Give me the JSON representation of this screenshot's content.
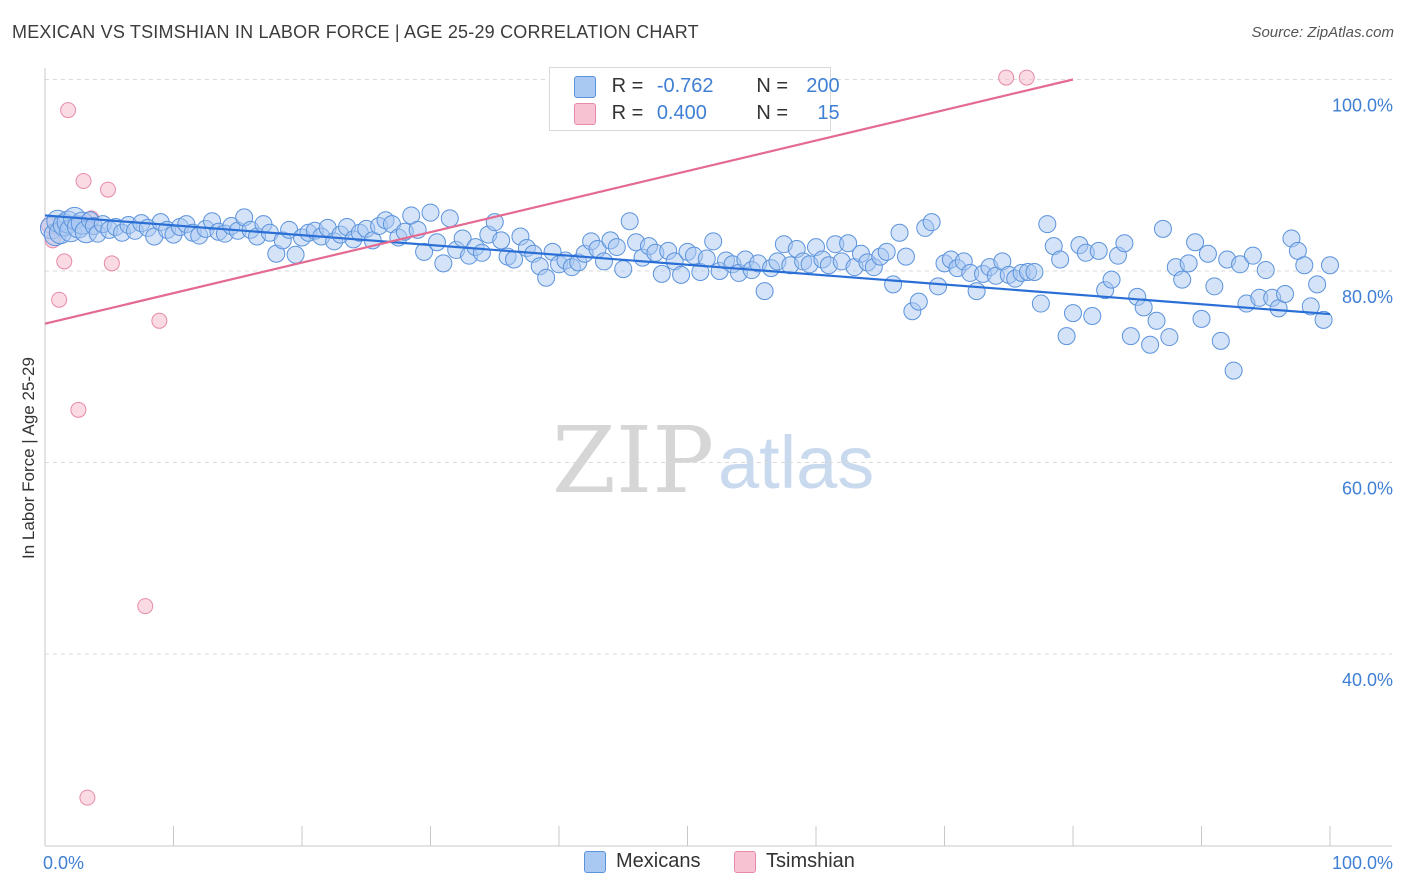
{
  "header": {
    "title": "MEXICAN VS TSIMSHIAN IN LABOR FORCE | AGE 25-29 CORRELATION CHART",
    "source": "Source: ZipAtlas.com"
  },
  "watermark": {
    "zip": "ZIP",
    "atlas": "atlas"
  },
  "legend": {
    "rows": [
      {
        "r_label": "R =",
        "r_value": "-0.762",
        "n_label": "N =",
        "n_value": "200"
      },
      {
        "r_label": "R =",
        "r_value": "0.400",
        "n_label": "N =",
        "n_value": "15"
      }
    ]
  },
  "bottom_legend": {
    "mexicans": "Mexicans",
    "tsimshian": "Tsimshian"
  },
  "colors": {
    "mexicans_fill": "#a9c8f2",
    "mexicans_stroke": "#5b93dc",
    "mexicans_line": "#2a6fd6",
    "tsimshian_fill": "#f7c3d2",
    "tsimshian_stroke": "#e78aa7",
    "tsimshian_line": "#e46a91",
    "axis_label": "#3f7fd4",
    "grid": "#d9d9d9"
  },
  "chart_data": {
    "type": "scatter",
    "title": "MEXICAN VS TSIMSHIAN IN LABOR FORCE | AGE 25-29 CORRELATION CHART",
    "xlabel": "",
    "ylabel": "In Labor Force | Age 25-29",
    "xlim": [
      0,
      100
    ],
    "ylim": [
      20,
      102
    ],
    "x_tick_labels": [
      "0.0%",
      "100.0%"
    ],
    "y_ticks": [
      40,
      60,
      80,
      100
    ],
    "y_tick_labels": [
      "40.0%",
      "60.0%",
      "80.0%",
      "100.0%"
    ],
    "grid": "horizontal-dashed",
    "legend_position": "top-center",
    "series": [
      {
        "name": "Mexicans",
        "r": -0.762,
        "n": 200,
        "trend": {
          "x": [
            0,
            100
          ],
          "y": [
            85.8,
            75.5
          ]
        },
        "points": [
          [
            0.5,
            84.5
          ],
          [
            0.8,
            83.8
          ],
          [
            1.0,
            85.2
          ],
          [
            1.2,
            84.0
          ],
          [
            1.5,
            84.8
          ],
          [
            1.8,
            85.1
          ],
          [
            2.0,
            84.2
          ],
          [
            2.3,
            85.5
          ],
          [
            2.6,
            84.6
          ],
          [
            2.9,
            85.0
          ],
          [
            3.2,
            84.1
          ],
          [
            3.5,
            85.3
          ],
          [
            3.8,
            84.7
          ],
          [
            4.1,
            83.9
          ],
          [
            4.5,
            84.9
          ],
          [
            5.0,
            84.3
          ],
          [
            5.5,
            84.6
          ],
          [
            6.0,
            84.0
          ],
          [
            6.5,
            84.8
          ],
          [
            7.0,
            84.2
          ],
          [
            7.5,
            85.0
          ],
          [
            8.0,
            84.5
          ],
          [
            8.5,
            83.6
          ],
          [
            9.0,
            85.1
          ],
          [
            9.5,
            84.3
          ],
          [
            10.0,
            83.8
          ],
          [
            10.5,
            84.6
          ],
          [
            11.0,
            84.9
          ],
          [
            11.5,
            84.0
          ],
          [
            12.0,
            83.7
          ],
          [
            12.5,
            84.4
          ],
          [
            13.0,
            85.2
          ],
          [
            13.5,
            84.1
          ],
          [
            14.0,
            83.9
          ],
          [
            14.5,
            84.7
          ],
          [
            15.0,
            84.2
          ],
          [
            15.5,
            85.6
          ],
          [
            16.0,
            84.3
          ],
          [
            16.5,
            83.6
          ],
          [
            17.0,
            84.9
          ],
          [
            17.5,
            84.0
          ],
          [
            18.0,
            81.8
          ],
          [
            18.5,
            83.2
          ],
          [
            19.0,
            84.3
          ],
          [
            19.5,
            81.7
          ],
          [
            20.0,
            83.5
          ],
          [
            20.5,
            84.0
          ],
          [
            21.0,
            84.2
          ],
          [
            21.5,
            83.6
          ],
          [
            22.0,
            84.5
          ],
          [
            22.5,
            83.1
          ],
          [
            23.0,
            83.8
          ],
          [
            23.5,
            84.6
          ],
          [
            24.0,
            83.3
          ],
          [
            24.5,
            84.0
          ],
          [
            25.0,
            84.4
          ],
          [
            25.5,
            83.2
          ],
          [
            26.0,
            84.7
          ],
          [
            26.5,
            85.3
          ],
          [
            27.0,
            84.9
          ],
          [
            27.5,
            83.5
          ],
          [
            28.0,
            84.1
          ],
          [
            28.5,
            85.8
          ],
          [
            29.0,
            84.3
          ],
          [
            29.5,
            82.0
          ],
          [
            30.0,
            86.1
          ],
          [
            30.5,
            83.0
          ],
          [
            31.0,
            80.8
          ],
          [
            31.5,
            85.5
          ],
          [
            32.0,
            82.2
          ],
          [
            32.5,
            83.4
          ],
          [
            33.0,
            81.6
          ],
          [
            33.5,
            82.5
          ],
          [
            34.0,
            81.9
          ],
          [
            34.5,
            83.8
          ],
          [
            35.0,
            85.1
          ],
          [
            35.5,
            83.2
          ],
          [
            36.0,
            81.5
          ],
          [
            36.5,
            81.2
          ],
          [
            37.0,
            83.6
          ],
          [
            37.5,
            82.4
          ],
          [
            38.0,
            81.8
          ],
          [
            38.5,
            80.5
          ],
          [
            39.0,
            79.3
          ],
          [
            39.5,
            82.0
          ],
          [
            40.0,
            80.7
          ],
          [
            40.5,
            81.1
          ],
          [
            41.0,
            80.4
          ],
          [
            41.5,
            80.9
          ],
          [
            42.0,
            81.8
          ],
          [
            42.5,
            83.1
          ],
          [
            43.0,
            82.3
          ],
          [
            43.5,
            81.0
          ],
          [
            44.0,
            83.2
          ],
          [
            44.5,
            82.5
          ],
          [
            45.0,
            80.2
          ],
          [
            45.5,
            85.2
          ],
          [
            46.0,
            83.0
          ],
          [
            46.5,
            81.4
          ],
          [
            47.0,
            82.6
          ],
          [
            47.5,
            81.9
          ],
          [
            48.0,
            79.7
          ],
          [
            48.5,
            82.1
          ],
          [
            49.0,
            81.0
          ],
          [
            49.5,
            79.6
          ],
          [
            50.0,
            82.0
          ],
          [
            50.5,
            81.6
          ],
          [
            51.0,
            79.9
          ],
          [
            51.5,
            81.3
          ],
          [
            52.0,
            83.1
          ],
          [
            52.5,
            80.0
          ],
          [
            53.0,
            81.1
          ],
          [
            53.5,
            80.7
          ],
          [
            54.0,
            79.8
          ],
          [
            54.5,
            81.2
          ],
          [
            55.0,
            80.1
          ],
          [
            55.5,
            80.8
          ],
          [
            56.0,
            77.9
          ],
          [
            56.5,
            80.3
          ],
          [
            57.0,
            81.0
          ],
          [
            57.5,
            82.8
          ],
          [
            58.0,
            80.6
          ],
          [
            58.5,
            82.3
          ],
          [
            59.0,
            81.0
          ],
          [
            59.5,
            80.7
          ],
          [
            60.0,
            82.5
          ],
          [
            60.5,
            81.2
          ],
          [
            61.0,
            80.6
          ],
          [
            61.5,
            82.8
          ],
          [
            62.0,
            81.0
          ],
          [
            62.5,
            82.9
          ],
          [
            63.0,
            80.4
          ],
          [
            63.5,
            81.8
          ],
          [
            64.0,
            80.9
          ],
          [
            64.5,
            80.4
          ],
          [
            65.0,
            81.5
          ],
          [
            65.5,
            82.0
          ],
          [
            66.0,
            78.6
          ],
          [
            66.5,
            84.0
          ],
          [
            67.0,
            81.5
          ],
          [
            67.5,
            75.8
          ],
          [
            68.0,
            76.8
          ],
          [
            68.5,
            84.5
          ],
          [
            69.0,
            85.1
          ],
          [
            69.5,
            78.4
          ],
          [
            70.0,
            80.8
          ],
          [
            70.5,
            81.2
          ],
          [
            71.0,
            80.3
          ],
          [
            71.5,
            81.0
          ],
          [
            72.0,
            79.8
          ],
          [
            72.5,
            77.9
          ],
          [
            73.0,
            79.7
          ],
          [
            73.5,
            80.4
          ],
          [
            74.0,
            79.5
          ],
          [
            74.5,
            81.0
          ],
          [
            75.0,
            79.6
          ],
          [
            75.5,
            79.2
          ],
          [
            76.0,
            79.8
          ],
          [
            76.5,
            79.9
          ],
          [
            77.0,
            79.9
          ],
          [
            77.5,
            76.6
          ],
          [
            78.0,
            84.9
          ],
          [
            78.5,
            82.6
          ],
          [
            79.0,
            81.2
          ],
          [
            79.5,
            73.2
          ],
          [
            80.0,
            75.6
          ],
          [
            80.5,
            82.7
          ],
          [
            81.0,
            81.9
          ],
          [
            81.5,
            75.3
          ],
          [
            82.0,
            82.1
          ],
          [
            82.5,
            78.0
          ],
          [
            83.0,
            79.1
          ],
          [
            83.5,
            81.6
          ],
          [
            84.0,
            82.9
          ],
          [
            84.5,
            73.2
          ],
          [
            85.0,
            77.3
          ],
          [
            85.5,
            76.2
          ],
          [
            86.0,
            72.3
          ],
          [
            86.5,
            74.8
          ],
          [
            87.0,
            84.4
          ],
          [
            87.5,
            73.1
          ],
          [
            88.0,
            80.4
          ],
          [
            88.5,
            79.1
          ],
          [
            89.0,
            80.8
          ],
          [
            89.5,
            83.0
          ],
          [
            90.0,
            75.0
          ],
          [
            90.5,
            81.8
          ],
          [
            91.0,
            78.4
          ],
          [
            91.5,
            72.7
          ],
          [
            92.0,
            81.2
          ],
          [
            92.5,
            69.6
          ],
          [
            93.0,
            80.7
          ],
          [
            93.5,
            76.6
          ],
          [
            94.0,
            81.6
          ],
          [
            94.5,
            77.2
          ],
          [
            95.0,
            80.1
          ],
          [
            95.5,
            77.2
          ],
          [
            96.0,
            76.1
          ],
          [
            96.5,
            77.6
          ],
          [
            97.0,
            83.4
          ],
          [
            97.5,
            82.1
          ],
          [
            98.0,
            80.6
          ],
          [
            98.5,
            76.3
          ],
          [
            99.0,
            78.6
          ],
          [
            99.5,
            74.9
          ],
          [
            100.0,
            80.6
          ]
        ]
      },
      {
        "name": "Tsimshian",
        "r": 0.4,
        "n": 15,
        "trend": {
          "x": [
            0,
            80
          ],
          "y": [
            74.5,
            100
          ]
        },
        "points": [
          [
            0.3,
            84.8
          ],
          [
            0.6,
            83.2
          ],
          [
            1.1,
            77.0
          ],
          [
            1.5,
            81.0
          ],
          [
            1.8,
            96.8
          ],
          [
            2.6,
            65.5
          ],
          [
            3.0,
            89.4
          ],
          [
            3.3,
            25.0
          ],
          [
            3.6,
            85.5
          ],
          [
            4.9,
            88.5
          ],
          [
            5.2,
            80.8
          ],
          [
            7.8,
            45.0
          ],
          [
            8.9,
            74.8
          ],
          [
            74.8,
            100.2
          ],
          [
            76.4,
            100.2
          ]
        ]
      }
    ]
  }
}
